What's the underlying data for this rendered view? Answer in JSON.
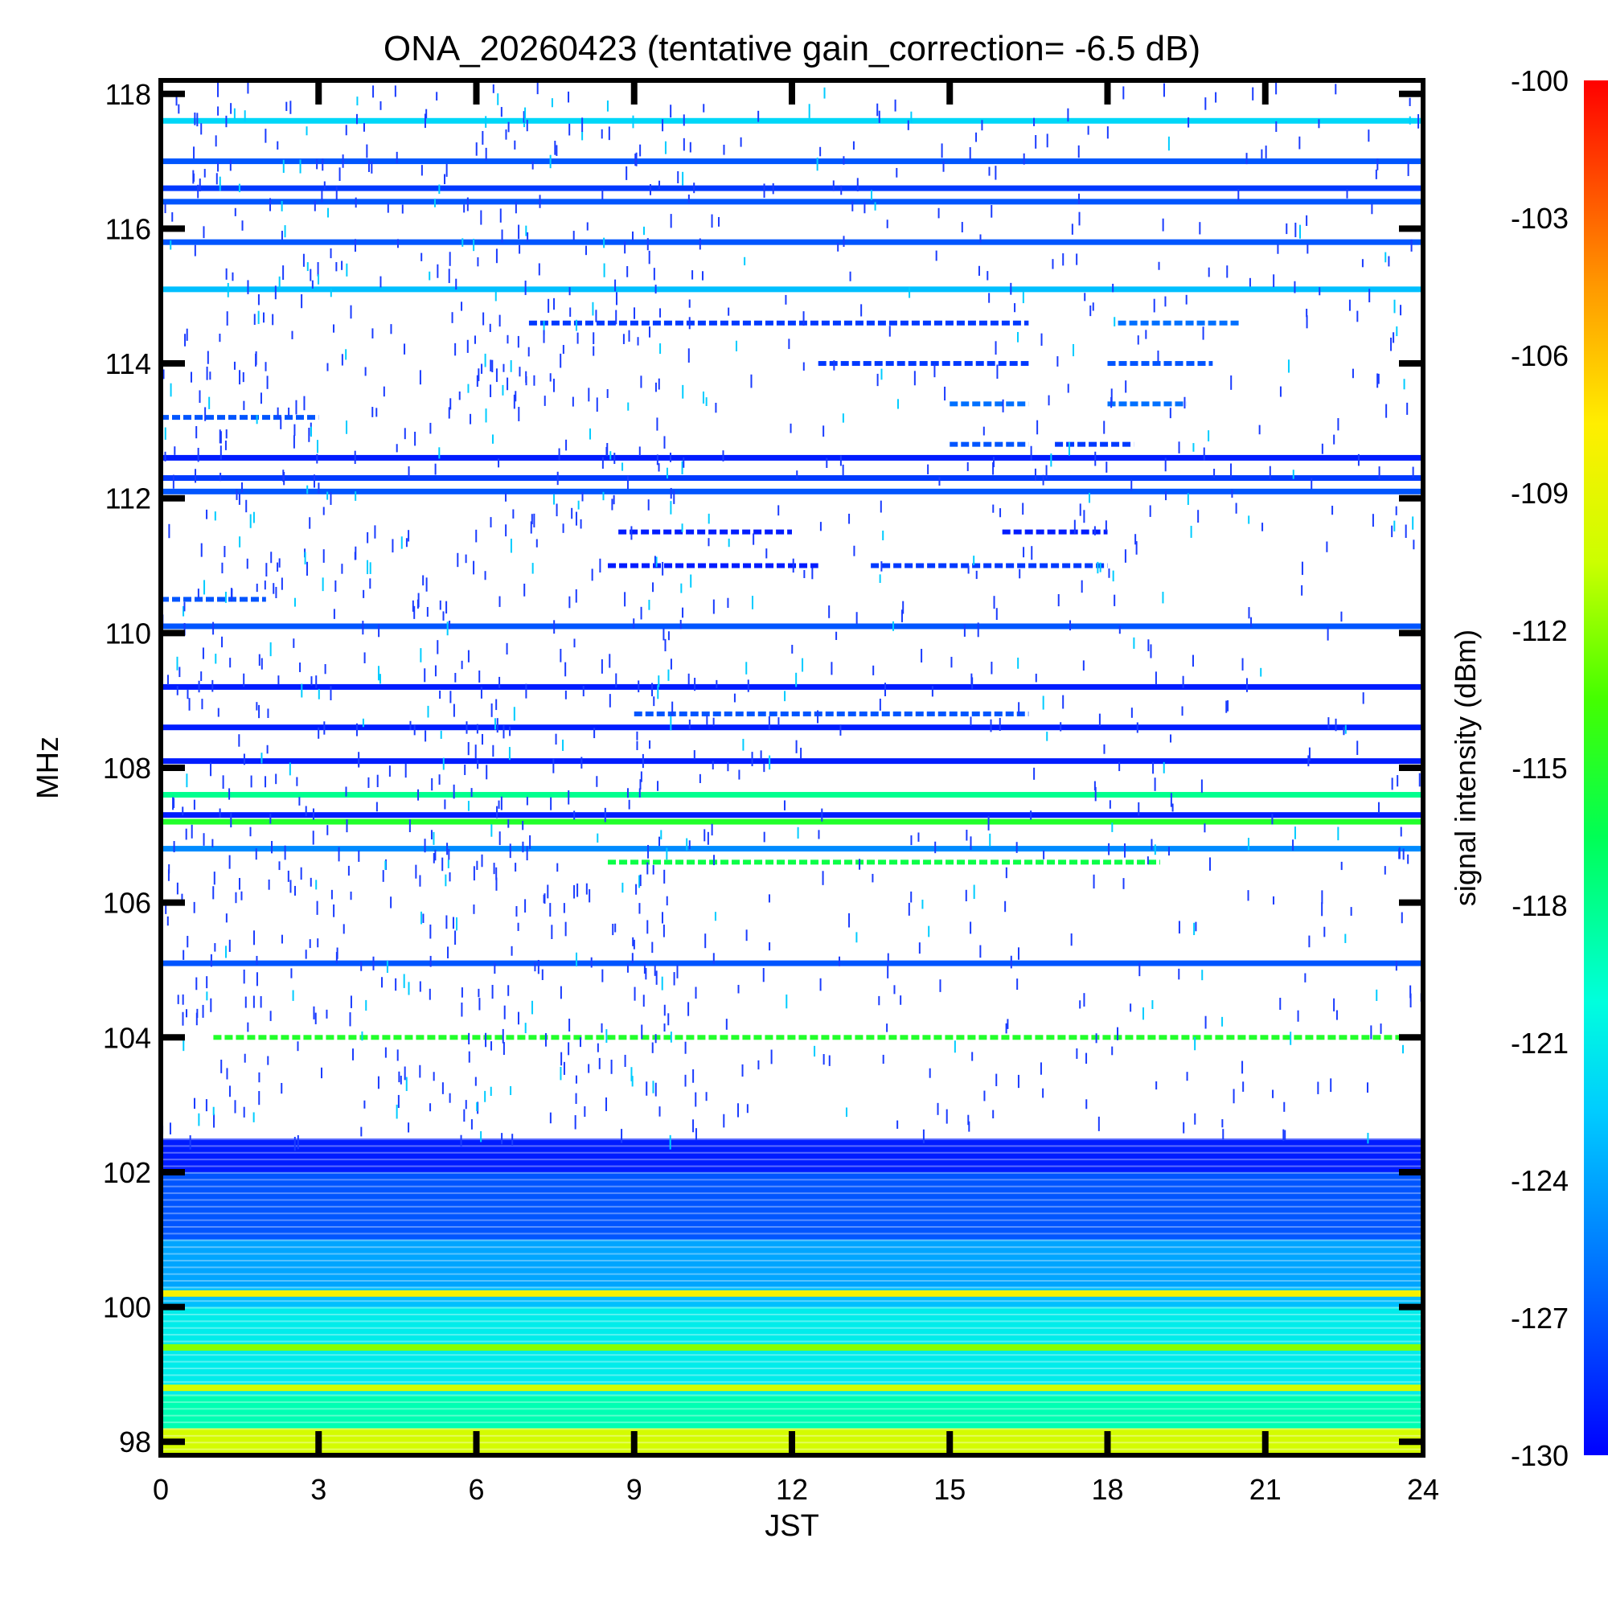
{
  "chart_data": {
    "type": "heatmap",
    "title": "ONA_20260423 (tentative gain_correction= -6.5 dB)",
    "xlabel": "JST",
    "ylabel": "MHz",
    "colorbar_label": "signal intensity (dBm)",
    "xlim": [
      0,
      24
    ],
    "ylim": [
      97.8,
      118.2
    ],
    "zlim": [
      -130,
      -100
    ],
    "x_ticks": [
      "0",
      "3",
      "6",
      "9",
      "12",
      "15",
      "18",
      "21",
      "24"
    ],
    "y_ticks": [
      "98",
      "100",
      "102",
      "104",
      "106",
      "108",
      "110",
      "112",
      "114",
      "116",
      "118"
    ],
    "colorbar_ticks": [
      "-100",
      "-103",
      "-106",
      "-109",
      "-112",
      "-115",
      "-118",
      "-121",
      "-124",
      "-127",
      "-130"
    ],
    "colormap": [
      "#0000ff",
      "#00aaff",
      "#00ffff",
      "#00ff66",
      "#33ff00",
      "#ccff00",
      "#ffff00",
      "#ffaa00",
      "#ff5500",
      "#ff0000"
    ],
    "background": "#ffffff",
    "continuous_bands": [
      {
        "freq": 117.6,
        "level": -122
      },
      {
        "freq": 117.0,
        "level": -127
      },
      {
        "freq": 116.6,
        "level": -128
      },
      {
        "freq": 116.4,
        "level": -127
      },
      {
        "freq": 115.8,
        "level": -127
      },
      {
        "freq": 115.1,
        "level": -123
      },
      {
        "freq": 112.6,
        "level": -129
      },
      {
        "freq": 112.3,
        "level": -128
      },
      {
        "freq": 112.1,
        "level": -127
      },
      {
        "freq": 110.1,
        "level": -127
      },
      {
        "freq": 109.2,
        "level": -129
      },
      {
        "freq": 108.6,
        "level": -129
      },
      {
        "freq": 108.1,
        "level": -129
      },
      {
        "freq": 107.6,
        "level": -118
      },
      {
        "freq": 107.3,
        "level": -129
      },
      {
        "freq": 107.2,
        "level": -115
      },
      {
        "freq": 106.8,
        "level": -125
      },
      {
        "freq": 105.1,
        "level": -127
      }
    ],
    "partial_bands": [
      {
        "freq": 114.6,
        "start": 7.0,
        "end": 16.5,
        "level": -128
      },
      {
        "freq": 114.6,
        "start": 18.2,
        "end": 20.5,
        "level": -126
      },
      {
        "freq": 114.0,
        "start": 12.5,
        "end": 16.5,
        "level": -128
      },
      {
        "freq": 114.0,
        "start": 18.0,
        "end": 20.0,
        "level": -127
      },
      {
        "freq": 113.4,
        "start": 15.0,
        "end": 16.5,
        "level": -126
      },
      {
        "freq": 113.4,
        "start": 18.0,
        "end": 19.5,
        "level": -126
      },
      {
        "freq": 113.2,
        "start": 0.0,
        "end": 3.0,
        "level": -127
      },
      {
        "freq": 112.8,
        "start": 15.0,
        "end": 16.5,
        "level": -127
      },
      {
        "freq": 112.8,
        "start": 17.0,
        "end": 18.5,
        "level": -128
      },
      {
        "freq": 111.5,
        "start": 8.7,
        "end": 12.0,
        "level": -129
      },
      {
        "freq": 111.5,
        "start": 16.0,
        "end": 18.0,
        "level": -129
      },
      {
        "freq": 111.0,
        "start": 8.5,
        "end": 12.5,
        "level": -129
      },
      {
        "freq": 111.0,
        "start": 13.5,
        "end": 18.0,
        "level": -128
      },
      {
        "freq": 110.5,
        "start": 0.0,
        "end": 2.0,
        "level": -127
      },
      {
        "freq": 108.8,
        "start": 9.0,
        "end": 16.5,
        "level": -127
      },
      {
        "freq": 106.6,
        "start": 8.5,
        "end": 19.0,
        "level": -116
      },
      {
        "freq": 104.0,
        "start": 1.0,
        "end": 24.0,
        "level": -115
      }
    ],
    "noise_floor": [
      {
        "from": 102.0,
        "to": 102.5,
        "level": -129
      },
      {
        "from": 101.0,
        "to": 102.0,
        "level": -127
      },
      {
        "from": 100.3,
        "to": 101.0,
        "level": -124
      },
      {
        "from": 100.0,
        "to": 100.3,
        "level": -123
      },
      {
        "from": 98.7,
        "to": 100.0,
        "level": -121
      },
      {
        "from": 98.2,
        "to": 98.7,
        "level": -119
      },
      {
        "from": 97.8,
        "to": 98.2,
        "level": -110
      }
    ],
    "noise_floor_bands": [
      {
        "freq": 100.2,
        "level": -108
      },
      {
        "freq": 99.4,
        "level": -112
      },
      {
        "freq": 98.8,
        "level": -110
      }
    ]
  }
}
